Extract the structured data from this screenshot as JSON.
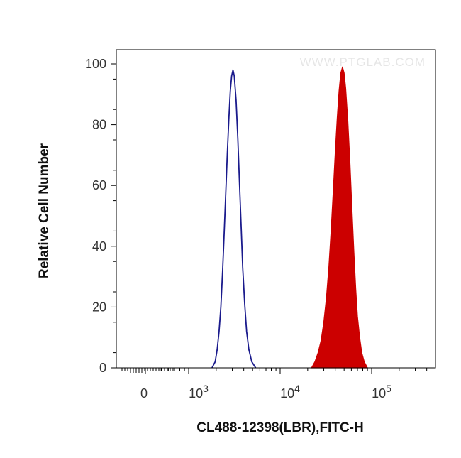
{
  "chart_data": {
    "type": "area",
    "title": "",
    "watermark": "WWW.PTGLAB.COM",
    "xlabel": "CL488-12398(LBR),FITC-H",
    "ylabel": "Relative Cell Number",
    "x_scale": "biexponential",
    "y_ticks": [
      "0",
      "20",
      "40",
      "60",
      "80",
      "100"
    ],
    "x_ticks": [
      {
        "base": "0",
        "exp": ""
      },
      {
        "base": "10",
        "exp": "3"
      },
      {
        "base": "10",
        "exp": "4"
      },
      {
        "base": "10",
        "exp": "5"
      }
    ],
    "ylim": [
      0,
      100
    ],
    "grid": false,
    "series": [
      {
        "role": "control",
        "style": "outline",
        "color": "#1a1a8c",
        "points": [
          [
            1800,
            0
          ],
          [
            1950,
            2
          ],
          [
            2050,
            6
          ],
          [
            2150,
            12
          ],
          [
            2250,
            20
          ],
          [
            2350,
            32
          ],
          [
            2450,
            45
          ],
          [
            2550,
            58
          ],
          [
            2650,
            71
          ],
          [
            2750,
            82
          ],
          [
            2850,
            91
          ],
          [
            2950,
            96
          ],
          [
            3050,
            98
          ],
          [
            3150,
            96
          ],
          [
            3300,
            88
          ],
          [
            3450,
            75
          ],
          [
            3600,
            60
          ],
          [
            3750,
            46
          ],
          [
            3900,
            33
          ],
          [
            4100,
            21
          ],
          [
            4300,
            12
          ],
          [
            4550,
            6
          ],
          [
            4900,
            2
          ],
          [
            5400,
            0
          ]
        ]
      },
      {
        "role": "sample",
        "style": "filled",
        "color": "#cc0000",
        "points": [
          [
            22000,
            0
          ],
          [
            24000,
            2
          ],
          [
            26000,
            5
          ],
          [
            28000,
            9
          ],
          [
            30000,
            15
          ],
          [
            32000,
            23
          ],
          [
            34000,
            33
          ],
          [
            36000,
            45
          ],
          [
            38000,
            58
          ],
          [
            40000,
            71
          ],
          [
            42000,
            82
          ],
          [
            44000,
            91
          ],
          [
            46000,
            97
          ],
          [
            48000,
            99
          ],
          [
            50000,
            97
          ],
          [
            52000,
            92
          ],
          [
            55000,
            81
          ],
          [
            58000,
            67
          ],
          [
            61000,
            52
          ],
          [
            64000,
            38
          ],
          [
            67000,
            26
          ],
          [
            70000,
            17
          ],
          [
            74000,
            10
          ],
          [
            78000,
            5
          ],
          [
            83000,
            2
          ],
          [
            90000,
            0
          ]
        ]
      }
    ]
  }
}
